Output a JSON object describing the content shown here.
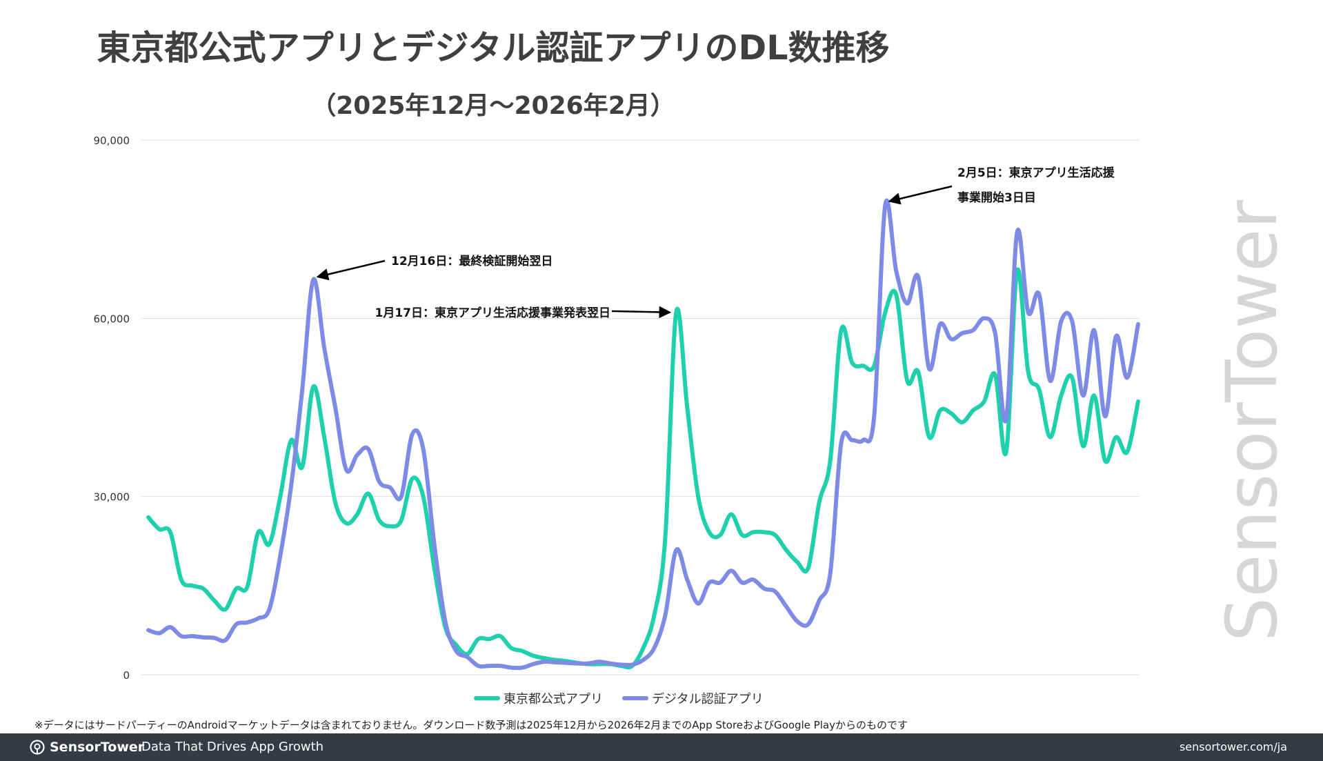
{
  "title": "東京都公式アプリとデジタル認証アプリのDL数推移",
  "subtitle": "（2025年12月〜2026年2月）",
  "footnote": "※データにはサードパーティーのAndroidマーケットデータは含まれておりません。ダウンロード数予測は2025年12月から2026年2月までのApp StoreおよびGoogle Playからのものです",
  "watermark": "SensorTower",
  "footer": {
    "brand": "SensorTower",
    "tagline": "Data That Drives App Growth",
    "url": "sensortower.com/ja"
  },
  "colors": {
    "tokyo": "#1fd0ad",
    "digital": "#7d8ae6",
    "grid": "#dddddd",
    "text": "#3f3f3f",
    "footer_bg": "#353a45"
  },
  "chart_data": {
    "type": "line",
    "legend_position": "bottom",
    "grid": true,
    "ylim": [
      0,
      90000
    ],
    "yticks": [
      "90,000",
      "60,000",
      "30,000",
      "0"
    ],
    "ytick_values": [
      90000,
      60000,
      30000,
      0
    ],
    "x_start": "2025-12-01",
    "x_end": "2026-02-28",
    "series": [
      {
        "name": "東京都公式アプリ",
        "values": [
          26500,
          24500,
          24000,
          16000,
          15000,
          14500,
          12500,
          11000,
          14500,
          14800,
          24000,
          22000,
          30000,
          39500,
          35000,
          48500,
          40000,
          29000,
          25500,
          27000,
          30500,
          26000,
          25000,
          26000,
          33000,
          30000,
          18000,
          8000,
          5000,
          3500,
          6000,
          6000,
          6500,
          4500,
          4000,
          3200,
          2800,
          2500,
          2300,
          2000,
          1800,
          1800,
          1800,
          1500,
          1500,
          4500,
          10000,
          23000,
          61000,
          45000,
          30000,
          24000,
          23500,
          27000,
          23500,
          24000,
          24000,
          23500,
          21000,
          19000,
          18000,
          29000,
          36000,
          58000,
          52500,
          52000,
          52000,
          61000,
          64000,
          49500,
          51000,
          40000,
          44500,
          44000,
          42500,
          44500,
          46000,
          50500,
          37500,
          68000,
          51000,
          48000,
          40000,
          47000,
          50000,
          38500,
          47000,
          36000,
          40000,
          37500,
          46000
        ]
      },
      {
        "name": "デジタル認証アプリ",
        "values": [
          7500,
          7000,
          8000,
          6500,
          6500,
          6300,
          6200,
          5800,
          8500,
          8800,
          9500,
          11000,
          20000,
          32000,
          48000,
          66500,
          55000,
          45000,
          34500,
          37000,
          38000,
          32500,
          31500,
          30000,
          40500,
          38000,
          22000,
          9000,
          4000,
          3000,
          1500,
          1500,
          1500,
          1200,
          1200,
          1800,
          2200,
          2100,
          2000,
          1900,
          1900,
          2200,
          1900,
          1700,
          1700,
          2500,
          4500,
          10000,
          21000,
          16000,
          12000,
          15500,
          15500,
          17500,
          15500,
          16000,
          14500,
          14000,
          11500,
          9000,
          8500,
          12500,
          17000,
          39000,
          39500,
          39500,
          43500,
          79000,
          68000,
          62500,
          67000,
          51500,
          59000,
          56500,
          57500,
          58000,
          60000,
          57500,
          43000,
          74500,
          61000,
          64000,
          49500,
          59500,
          59500,
          47000,
          58000,
          43500,
          57000,
          50000,
          59000
        ]
      }
    ],
    "annotations": [
      {
        "text": "12月16日：最終検証開始翌日",
        "series": 1,
        "index": 15
      },
      {
        "text": "1月17日：東京アプリ生活応援事業発表翌日",
        "series": 0,
        "index": 48
      },
      {
        "text": "2月5日：東京アプリ生活応援",
        "text2": "事業開始3日目",
        "series": 1,
        "index": 67
      }
    ]
  }
}
